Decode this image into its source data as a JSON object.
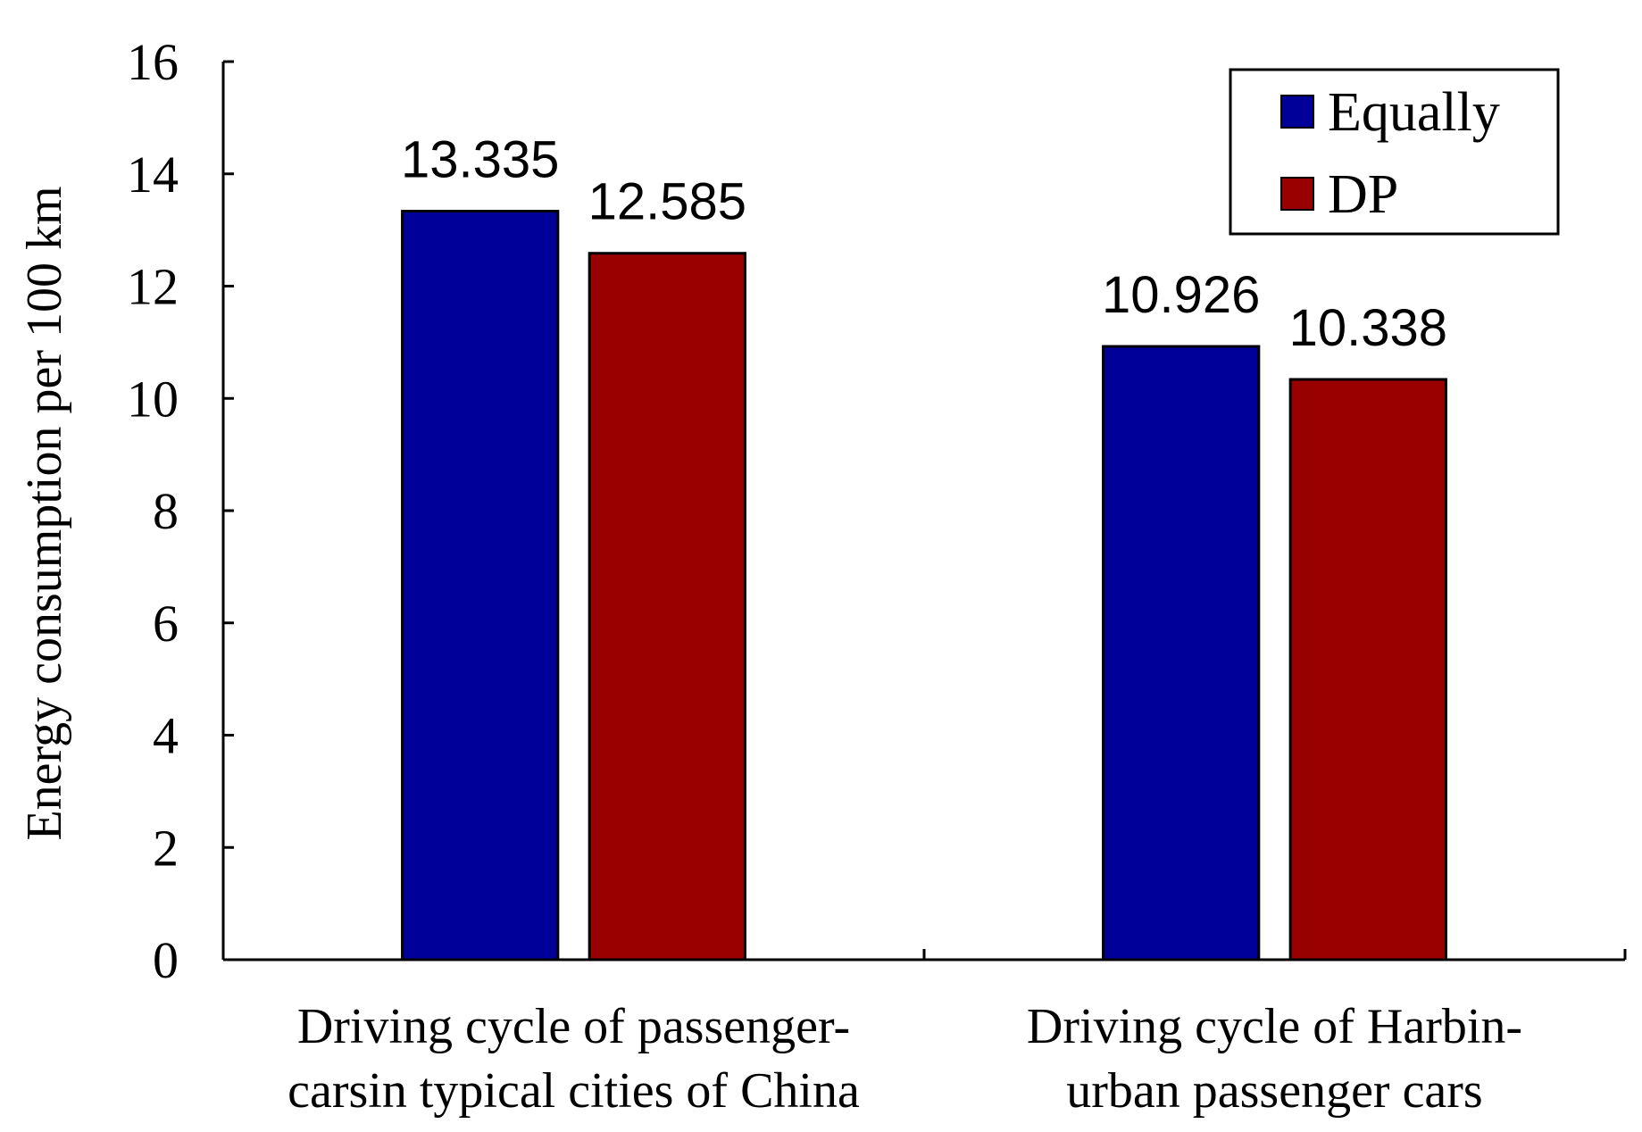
{
  "chart_data": {
    "type": "bar",
    "categories": [
      [
        "Driving cycle of passenger-",
        "carsin typical cities of China"
      ],
      [
        "Driving cycle of Harbin-",
        "urban passenger cars"
      ]
    ],
    "series": [
      {
        "name": "Equally",
        "color": "#000099",
        "values": [
          13.335,
          10.926
        ],
        "labels": [
          "13.335",
          "10.926"
        ]
      },
      {
        "name": "DP",
        "color": "#990000",
        "values": [
          12.585,
          10.338
        ],
        "labels": [
          "12.585",
          "10.338"
        ]
      }
    ],
    "xlabel": "",
    "ylabel": "Energy consumption per 100 km",
    "ylim": [
      0,
      16
    ],
    "yticks": [
      0,
      2,
      4,
      6,
      8,
      10,
      12,
      14,
      16
    ],
    "grid": false,
    "legend_position": "top-right"
  }
}
